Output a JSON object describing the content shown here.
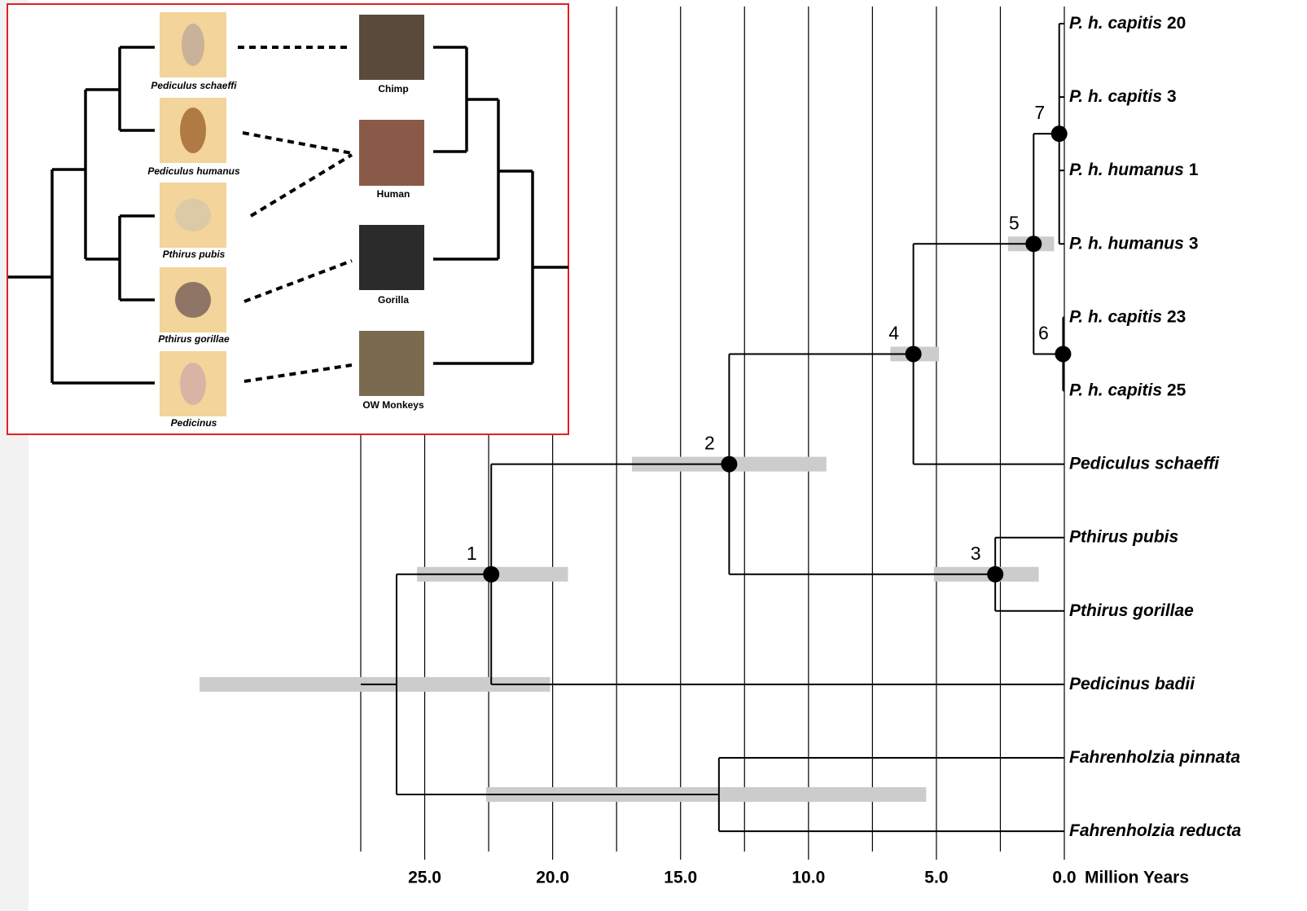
{
  "axis": {
    "title": "Million Years",
    "range": [
      0,
      27.5
    ],
    "grid": [
      0,
      2.5,
      5,
      7.5,
      10,
      12.5,
      15,
      17.5,
      20,
      22.5,
      25,
      27.5
    ],
    "ticks": [
      {
        "value": 25,
        "label": "25.0"
      },
      {
        "value": 20,
        "label": "20.0"
      },
      {
        "value": 15,
        "label": "15.0"
      },
      {
        "value": 10,
        "label": "10.0"
      },
      {
        "value": 5,
        "label": "5.0"
      },
      {
        "value": 0,
        "label": "0.0"
      }
    ]
  },
  "tree": {
    "age": 26.1,
    "ci": [
      33.8,
      20.1
    ],
    "children": [
      {
        "label": "1",
        "age": 22.4,
        "ci": [
          25.3,
          19.4
        ],
        "children": [
          {
            "label": "2",
            "age": 13.1,
            "ci": [
              16.9,
              9.3
            ],
            "children": [
              {
                "label": "4",
                "age": 5.9,
                "ci": [
                  6.8,
                  4.9
                ],
                "children": [
                  {
                    "label": "5",
                    "age": 1.2,
                    "ci": [
                      2.2,
                      0.4
                    ],
                    "children": [
                      {
                        "label": "7",
                        "age": 0.2,
                        "children": [
                          {
                            "name": "P. h. capitis",
                            "number": "20"
                          },
                          {
                            "name": "P. h. capitis",
                            "number": "3"
                          },
                          {
                            "name": "P. h. humanus",
                            "number": "1"
                          },
                          {
                            "name": "P. h. humanus",
                            "number": "3"
                          }
                        ]
                      },
                      {
                        "label": "6",
                        "age": 0.05,
                        "children": [
                          {
                            "name": "P. h. capitis",
                            "number": "23"
                          },
                          {
                            "name": "P. h. capitis",
                            "number": "25"
                          }
                        ]
                      }
                    ]
                  },
                  {
                    "name": "Pediculus schaeffi"
                  }
                ]
              },
              {
                "label": "3",
                "age": 2.7,
                "ci": [
                  5.1,
                  1.0
                ],
                "children": [
                  {
                    "name": "Pthirus pubis"
                  },
                  {
                    "name": "Pthirus gorillae"
                  }
                ]
              }
            ]
          },
          {
            "name": "Pedicinus badii"
          }
        ]
      },
      {
        "age": 13.5,
        "ci": [
          22.6,
          5.4
        ],
        "children": [
          {
            "name": "Fahrenholzia pinnata"
          },
          {
            "name": "Fahrenholzia reducta"
          }
        ]
      }
    ]
  },
  "inset": {
    "lice": [
      "Pediculus schaeffi",
      "Pediculus humanus",
      "Pthirus pubis",
      "Pthirus gorillae",
      "Pedicinus"
    ],
    "hosts": [
      "Chimp",
      "Human",
      "Gorilla",
      "OW Monkeys"
    ]
  }
}
